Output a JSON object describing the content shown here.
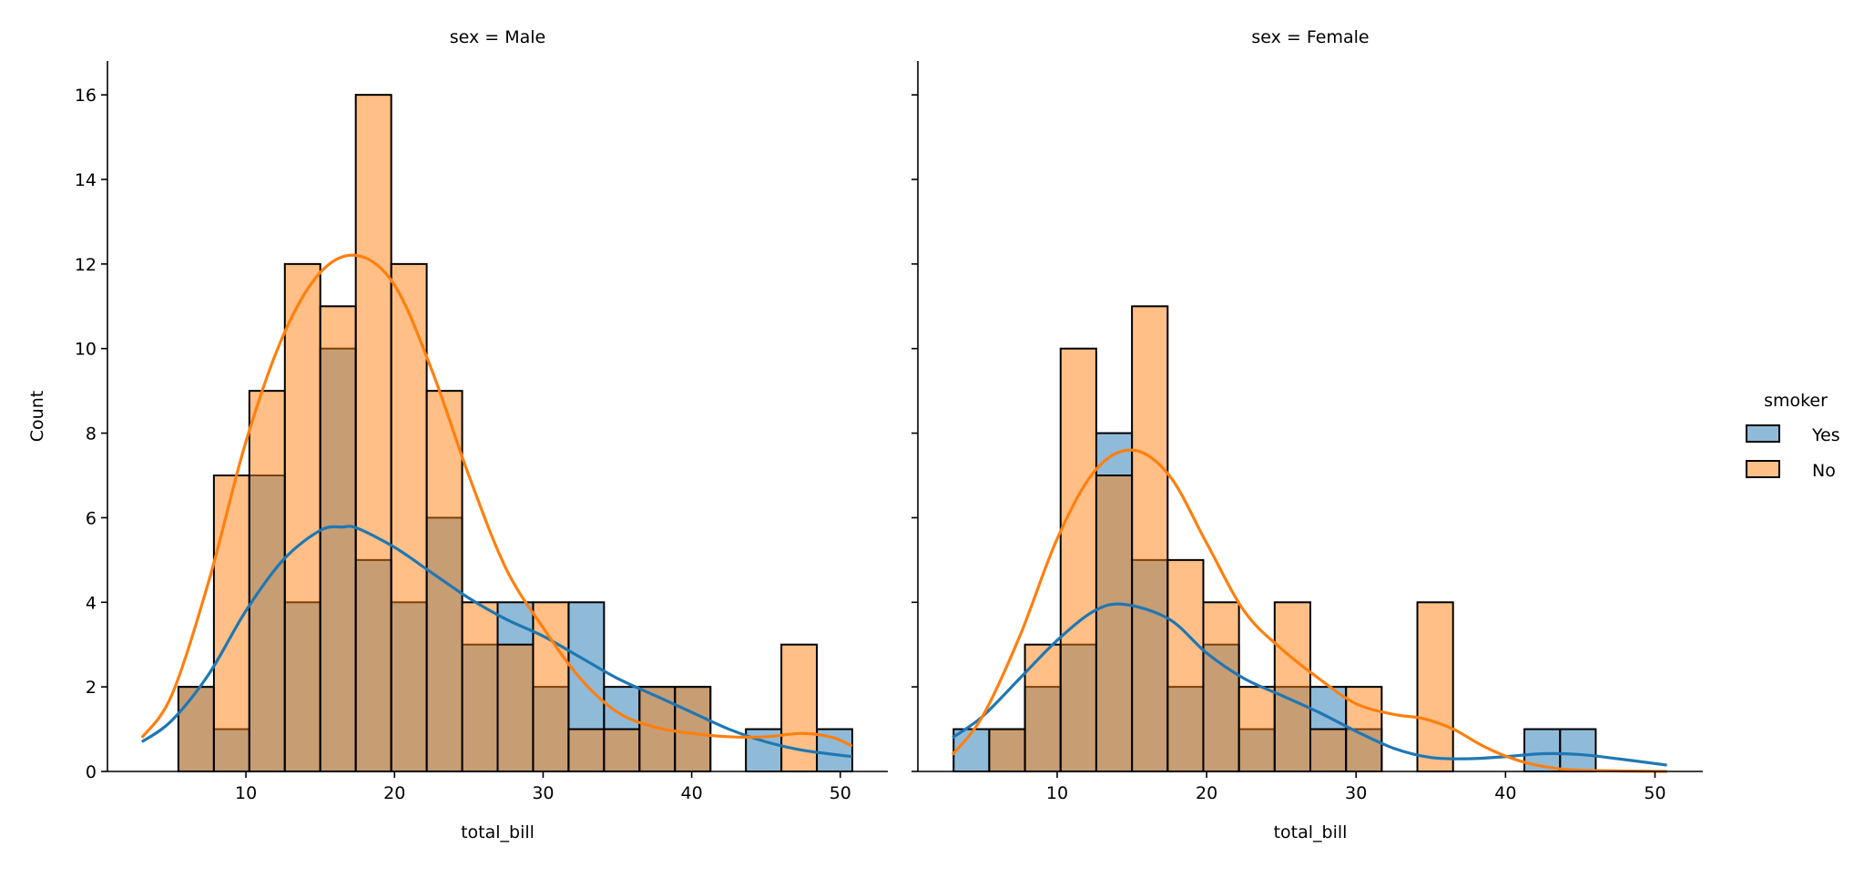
{
  "chart_data": {
    "type": "bar",
    "subtype": "histogram with kde, faceted",
    "bins": {
      "start": 3.07,
      "end": 50.81,
      "count": 20
    },
    "xlabel": "total_bill",
    "ylabel": "Count",
    "ylim": [
      0,
      16.8
    ],
    "xlim": [
      0.68,
      53.2
    ],
    "xticks": [
      10,
      20,
      30,
      40,
      50
    ],
    "yticks": [
      0,
      2,
      4,
      6,
      8,
      10,
      12,
      14,
      16
    ],
    "grid": false,
    "legend": {
      "title": "smoker",
      "placement": "right",
      "entries": [
        "Yes",
        "No"
      ]
    },
    "colors": {
      "Yes": "#1f77b4",
      "No": "#ff7f0e"
    },
    "panels": [
      {
        "title": "sex = Male",
        "series": [
          {
            "name": "Yes",
            "counts": [
              0,
              2,
              1,
              7,
              4,
              10,
              5,
              4,
              6,
              3,
              4,
              2,
              4,
              2,
              2,
              2,
              0,
              1,
              0,
              1
            ],
            "kde": [
              [
                3,
                0.7
              ],
              [
                5,
                1.2
              ],
              [
                7.5,
                2.3
              ],
              [
                10,
                3.8
              ],
              [
                12.5,
                5.0
              ],
              [
                15,
                5.7
              ],
              [
                16.5,
                5.78
              ],
              [
                17.5,
                5.75
              ],
              [
                20,
                5.3
              ],
              [
                22.5,
                4.7
              ],
              [
                25,
                4.1
              ],
              [
                27.5,
                3.6
              ],
              [
                30,
                3.2
              ],
              [
                32.5,
                2.7
              ],
              [
                35,
                2.2
              ],
              [
                37.5,
                1.8
              ],
              [
                40,
                1.4
              ],
              [
                42.5,
                1.0
              ],
              [
                45,
                0.7
              ],
              [
                47.5,
                0.5
              ],
              [
                50.8,
                0.35
              ]
            ]
          },
          {
            "name": "No",
            "counts": [
              0,
              2,
              7,
              9,
              12,
              11,
              16,
              12,
              9,
              4,
              3,
              4,
              1,
              1,
              2,
              2,
              0,
              0,
              3,
              0
            ],
            "kde": [
              [
                3,
                0.8
              ],
              [
                5,
                1.8
              ],
              [
                7.5,
                4.5
              ],
              [
                10,
                7.8
              ],
              [
                12.5,
                10.3
              ],
              [
                15,
                11.8
              ],
              [
                17.5,
                12.2
              ],
              [
                20,
                11.5
              ],
              [
                22.5,
                9.5
              ],
              [
                25,
                7.0
              ],
              [
                27.5,
                4.8
              ],
              [
                30,
                3.4
              ],
              [
                32.5,
                2.2
              ],
              [
                35,
                1.4
              ],
              [
                37.5,
                1.05
              ],
              [
                40,
                0.9
              ],
              [
                42.5,
                0.82
              ],
              [
                45,
                0.82
              ],
              [
                47.5,
                0.9
              ],
              [
                49.5,
                0.8
              ],
              [
                50.8,
                0.6
              ]
            ]
          }
        ]
      },
      {
        "title": "sex = Female",
        "series": [
          {
            "name": "Yes",
            "counts": [
              1,
              1,
              2,
              3,
              8,
              5,
              2,
              3,
              1,
              2,
              2,
              1,
              0,
              0,
              0,
              0,
              1,
              1,
              0,
              0
            ],
            "kde": [
              [
                3,
                0.8
              ],
              [
                5,
                1.3
              ],
              [
                7.5,
                2.2
              ],
              [
                10,
                3.1
              ],
              [
                12.5,
                3.8
              ],
              [
                14.5,
                3.95
              ],
              [
                17.5,
                3.6
              ],
              [
                20,
                2.8
              ],
              [
                22.5,
                2.2
              ],
              [
                25,
                1.8
              ],
              [
                27.5,
                1.4
              ],
              [
                30,
                0.95
              ],
              [
                32.5,
                0.55
              ],
              [
                35,
                0.33
              ],
              [
                37.5,
                0.3
              ],
              [
                40,
                0.35
              ],
              [
                42.5,
                0.42
              ],
              [
                45,
                0.4
              ],
              [
                47.5,
                0.3
              ],
              [
                50.8,
                0.15
              ]
            ]
          },
          {
            "name": "No",
            "counts": [
              0,
              1,
              3,
              10,
              7,
              11,
              5,
              4,
              2,
              4,
              1,
              2,
              0,
              4,
              0,
              0,
              0,
              0,
              0,
              0
            ],
            "kde": [
              [
                3,
                0.4
              ],
              [
                5,
                1.3
              ],
              [
                7.5,
                3.2
              ],
              [
                10,
                5.5
              ],
              [
                12.5,
                7.1
              ],
              [
                15,
                7.6
              ],
              [
                17.5,
                7.0
              ],
              [
                20,
                5.4
              ],
              [
                22.5,
                3.8
              ],
              [
                25,
                2.9
              ],
              [
                27.5,
                2.2
              ],
              [
                30,
                1.6
              ],
              [
                32.5,
                1.35
              ],
              [
                34.5,
                1.25
              ],
              [
                36.5,
                1.0
              ],
              [
                38.5,
                0.6
              ],
              [
                40.5,
                0.3
              ],
              [
                42.5,
                0.12
              ],
              [
                45,
                0.03
              ],
              [
                50.8,
                0.0
              ]
            ]
          }
        ]
      }
    ]
  }
}
